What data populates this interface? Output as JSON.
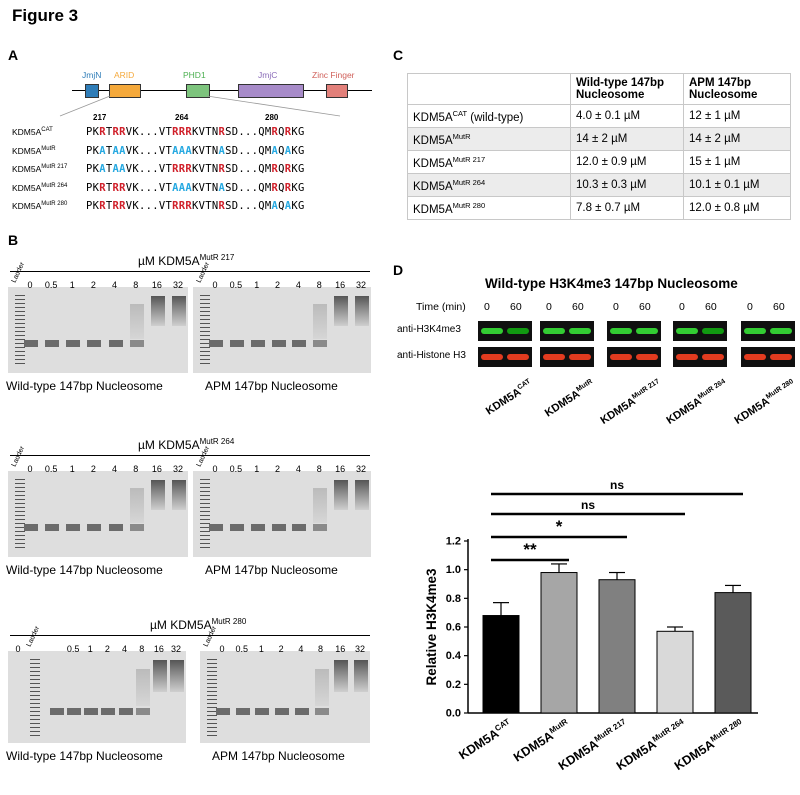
{
  "figure_title": "Figure 3",
  "panels": {
    "a": "A",
    "b": "B",
    "c": "C",
    "d": "D"
  },
  "panel_a": {
    "domains": [
      {
        "name": "JmjN",
        "color": "#2f7db8"
      },
      {
        "name": "ARID",
        "color": "#f5a93b"
      },
      {
        "name": "PHD1",
        "color": "#7dc47d"
      },
      {
        "name": "JmjC",
        "color": "#a78bc9"
      },
      {
        "name": "Zinc Finger",
        "color": "#e2807a"
      }
    ],
    "domain_label_colors": [
      "#2f7db8",
      "#f5a93b",
      "#4caf50",
      "#8a6bb8",
      "#d0605a"
    ],
    "positions": [
      "217",
      "264",
      "280"
    ],
    "rows": [
      {
        "name": "KDM5A",
        "sup": "CAT",
        "segments": [
          [
            "n",
            "PK"
          ],
          [
            "r",
            "R"
          ],
          [
            "n",
            "T"
          ],
          [
            "r",
            "RR"
          ],
          [
            "n",
            "VK...VT"
          ],
          [
            "r",
            "RRR"
          ],
          [
            "n",
            "KVTN"
          ],
          [
            "r",
            "R"
          ],
          [
            "n",
            "SD...QM"
          ],
          [
            "r",
            "R"
          ],
          [
            "n",
            "Q"
          ],
          [
            "r",
            "R"
          ],
          [
            "n",
            "KG"
          ]
        ]
      },
      {
        "name": "KDM5A",
        "sup": "MutR",
        "segments": [
          [
            "n",
            "PK"
          ],
          [
            "a",
            "A"
          ],
          [
            "n",
            "T"
          ],
          [
            "a",
            "AA"
          ],
          [
            "n",
            "VK...VT"
          ],
          [
            "a",
            "AAA"
          ],
          [
            "n",
            "KVTN"
          ],
          [
            "a",
            "A"
          ],
          [
            "n",
            "SD...QM"
          ],
          [
            "a",
            "A"
          ],
          [
            "n",
            "Q"
          ],
          [
            "a",
            "A"
          ],
          [
            "n",
            "KG"
          ]
        ]
      },
      {
        "name": "KDM5A",
        "sup": "MutR 217",
        "segments": [
          [
            "n",
            "PK"
          ],
          [
            "a",
            "A"
          ],
          [
            "n",
            "T"
          ],
          [
            "a",
            "AA"
          ],
          [
            "n",
            "VK...VT"
          ],
          [
            "r",
            "RRR"
          ],
          [
            "n",
            "KVTN"
          ],
          [
            "r",
            "R"
          ],
          [
            "n",
            "SD...QM"
          ],
          [
            "r",
            "R"
          ],
          [
            "n",
            "Q"
          ],
          [
            "r",
            "R"
          ],
          [
            "n",
            "KG"
          ]
        ]
      },
      {
        "name": "KDM5A",
        "sup": "MutR 264",
        "segments": [
          [
            "n",
            "PK"
          ],
          [
            "r",
            "R"
          ],
          [
            "n",
            "T"
          ],
          [
            "r",
            "RR"
          ],
          [
            "n",
            "VK...VT"
          ],
          [
            "a",
            "AAA"
          ],
          [
            "n",
            "KVTN"
          ],
          [
            "a",
            "A"
          ],
          [
            "n",
            "SD...QM"
          ],
          [
            "r",
            "R"
          ],
          [
            "n",
            "Q"
          ],
          [
            "r",
            "R"
          ],
          [
            "n",
            "KG"
          ]
        ]
      },
      {
        "name": "KDM5A",
        "sup": "MutR 280",
        "segments": [
          [
            "n",
            "PK"
          ],
          [
            "r",
            "R"
          ],
          [
            "n",
            "T"
          ],
          [
            "r",
            "RR"
          ],
          [
            "n",
            "VK...VT"
          ],
          [
            "r",
            "RRR"
          ],
          [
            "n",
            "KVTN"
          ],
          [
            "r",
            "R"
          ],
          [
            "n",
            "SD...QM"
          ],
          [
            "a",
            "A"
          ],
          [
            "n",
            "Q"
          ],
          [
            "a",
            "A"
          ],
          [
            "n",
            "KG"
          ]
        ]
      }
    ]
  },
  "panel_b": {
    "unit": "µM KDM5A",
    "groups": [
      {
        "sup": "MutR 217",
        "left_caption": "Wild-type 147bp Nucleosome",
        "right_caption": "APM 147bp Nucleosome"
      },
      {
        "sup": "MutR 264",
        "left_caption": "Wild-type 147bp Nucleosome",
        "right_caption": "APM 147bp Nucleosome"
      },
      {
        "sup": "MutR 280",
        "left_caption": "Wild-type 147bp Nucleosome",
        "right_caption": "APM 147bp Nucleosome"
      }
    ],
    "ladder": "Ladder",
    "lanes": [
      "0",
      "0.5",
      "1",
      "2",
      "4",
      "8",
      "16",
      "32"
    ]
  },
  "panel_c": {
    "headers": [
      "",
      "Wild-type 147bp Nucleosome",
      "APM 147bp Nucleosome"
    ],
    "rows": [
      {
        "name": "KDM5A",
        "sup": "CAT",
        "suffix": " (wild-type)",
        "wt": "4.0 ± 0.1 µM",
        "apm": "12 ± 1 µM"
      },
      {
        "name": "KDM5A",
        "sup": "MutR",
        "suffix": "",
        "wt": "14 ± 2 µM",
        "apm": "14 ± 2 µM"
      },
      {
        "name": "KDM5A",
        "sup": "MutR 217",
        "suffix": "",
        "wt": "12.0 ± 0.9 µM",
        "apm": "15 ± 1 µM"
      },
      {
        "name": "KDM5A",
        "sup": "MutR 264",
        "suffix": "",
        "wt": "10.3 ± 0.3 µM",
        "apm": "10.1 ± 0.1 µM"
      },
      {
        "name": "KDM5A",
        "sup": "MutR 280",
        "suffix": "",
        "wt": "7.8 ± 0.7 µM",
        "apm": "12.0 ± 0.8 µM"
      }
    ]
  },
  "panel_d": {
    "title": "Wild-type H3K4me3 147bp Nucleosome",
    "time_label": "Time (min)",
    "times": [
      "0",
      "60"
    ],
    "blot_rows": [
      "anti-H3K4me3",
      "anti-Histone H3"
    ],
    "green_band_colors": [
      "#33cc33",
      "#119911"
    ],
    "red_band_colors": [
      "#e23b1f",
      "#b02010"
    ],
    "samples": [
      {
        "name": "KDM5A",
        "sup": "CAT"
      },
      {
        "name": "KDM5A",
        "sup": "MutR"
      },
      {
        "name": "KDM5A",
        "sup": "MutR 217"
      },
      {
        "name": "KDM5A",
        "sup": "MutR 264"
      },
      {
        "name": "KDM5A",
        "sup": "MutR 280"
      }
    ]
  },
  "chart_data": {
    "type": "bar",
    "categories": [
      "KDM5A CAT",
      "KDM5A MutR",
      "KDM5A MutR 217",
      "KDM5A MutR 264",
      "KDM5A MutR 280"
    ],
    "category_labels": [
      {
        "name": "KDM5A",
        "sup": "CAT"
      },
      {
        "name": "KDM5A",
        "sup": "MutR"
      },
      {
        "name": "KDM5A",
        "sup": "MutR 217"
      },
      {
        "name": "KDM5A",
        "sup": "MutR 264"
      },
      {
        "name": "KDM5A",
        "sup": "MutR 280"
      }
    ],
    "values": [
      0.68,
      0.98,
      0.93,
      0.57,
      0.84
    ],
    "errors": [
      0.09,
      0.06,
      0.05,
      0.03,
      0.05
    ],
    "bar_colors": [
      "#000000",
      "#a6a6a6",
      "#808080",
      "#d9d9d9",
      "#5a5a5a"
    ],
    "ylabel": "Relative H3K4me3",
    "ylim": [
      0,
      1.2
    ],
    "yticks": [
      "0.0",
      "0.2",
      "0.4",
      "0.6",
      "0.8",
      "1.0",
      "1.2"
    ],
    "significance": [
      {
        "from": 0,
        "to": 4,
        "label": "ns"
      },
      {
        "from": 0,
        "to": 3,
        "label": "ns"
      },
      {
        "from": 0,
        "to": 2,
        "label": "*"
      },
      {
        "from": 0,
        "to": 1,
        "label": "**"
      }
    ]
  }
}
